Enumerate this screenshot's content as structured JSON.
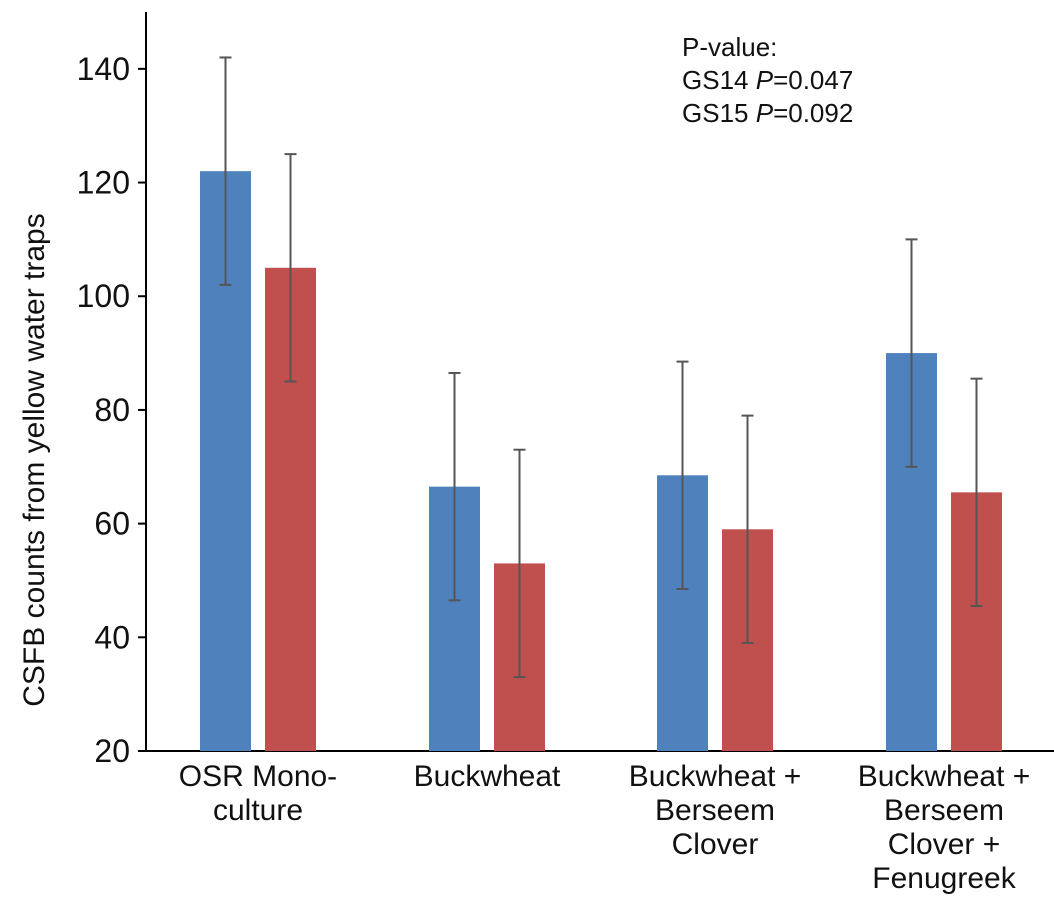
{
  "chart_data": {
    "type": "bar",
    "categories": [
      [
        "OSR Mono-",
        "culture"
      ],
      [
        "Buckwheat"
      ],
      [
        "Buckwheat +",
        "Berseem",
        "Clover"
      ],
      [
        "Buckwheat +",
        "Berseem",
        "Clover +",
        "Fenugreek"
      ]
    ],
    "series": [
      {
        "color": "#4F81BD",
        "values": [
          122,
          66.5,
          68.5,
          90
        ],
        "error": [
          20,
          20,
          20,
          20
        ]
      },
      {
        "color": "#C0504D",
        "values": [
          105,
          53,
          59,
          65.5
        ],
        "error": [
          20,
          20,
          20,
          20
        ]
      }
    ],
    "ylabel": "CSFB counts from yellow water traps",
    "ylim": [
      20,
      150
    ],
    "yticks": [
      20,
      40,
      60,
      80,
      100,
      120,
      140
    ],
    "grid": false,
    "annotation": {
      "title": "P-value:",
      "lines": [
        {
          "prefix": "GS14 ",
          "italic": "P",
          "suffix": "=0.047"
        },
        {
          "prefix": "GS15 ",
          "italic": "P",
          "suffix": "=0.092"
        }
      ]
    }
  }
}
